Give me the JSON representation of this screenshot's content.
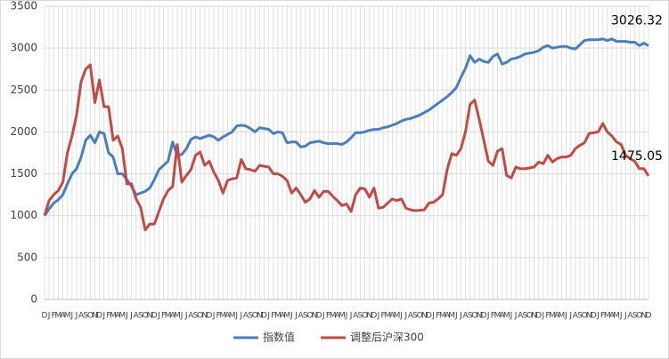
{
  "chart_data": {
    "type": "line",
    "categories": [
      "D",
      "J",
      "F",
      "M",
      "A",
      "M",
      "J",
      "J",
      "A",
      "S",
      "O",
      "N",
      "D",
      "J",
      "F",
      "M",
      "A",
      "M",
      "J",
      "J",
      "A",
      "S",
      "O",
      "N",
      "D",
      "J",
      "F",
      "M",
      "A",
      "M",
      "J",
      "J",
      "A",
      "S",
      "O",
      "N",
      "D",
      "J",
      "F",
      "M",
      "A",
      "M",
      "J",
      "J",
      "A",
      "S",
      "O",
      "N",
      "D",
      "J",
      "F",
      "M",
      "A",
      "M",
      "J",
      "J",
      "A",
      "S",
      "O",
      "N",
      "D",
      "J",
      "F",
      "M",
      "A",
      "M",
      "J",
      "J",
      "A",
      "S",
      "O",
      "N",
      "D",
      "J",
      "F",
      "M",
      "A",
      "M",
      "J",
      "J",
      "A",
      "S",
      "O",
      "N",
      "D",
      "J",
      "F",
      "M",
      "A",
      "M",
      "J",
      "J",
      "A",
      "S",
      "O",
      "N",
      "D",
      "J",
      "F",
      "M",
      "A",
      "M",
      "J",
      "J",
      "A",
      "S",
      "O",
      "N",
      "D",
      "J",
      "F",
      "M",
      "A",
      "M",
      "J",
      "J",
      "A",
      "S",
      "O",
      "N",
      "D",
      "J",
      "F",
      "M",
      "A",
      "M",
      "J",
      "J",
      "A",
      "S",
      "O",
      "N",
      "D"
    ],
    "series": [
      {
        "name": "指数值",
        "color": "#4a7ebb",
        "values": [
          1000,
          1080,
          1150,
          1190,
          1250,
          1380,
          1500,
          1560,
          1700,
          1900,
          1960,
          1870,
          2000,
          1980,
          1750,
          1700,
          1500,
          1500,
          1430,
          1350,
          1250,
          1270,
          1290,
          1330,
          1430,
          1550,
          1600,
          1650,
          1880,
          1720,
          1730,
          1800,
          1910,
          1940,
          1920,
          1940,
          1960,
          1940,
          1900,
          1940,
          1970,
          2000,
          2070,
          2080,
          2070,
          2040,
          2000,
          2050,
          2040,
          2030,
          1980,
          2000,
          1990,
          1870,
          1880,
          1880,
          1820,
          1830,
          1870,
          1880,
          1890,
          1870,
          1860,
          1860,
          1860,
          1850,
          1880,
          1930,
          1990,
          1990,
          2000,
          2020,
          2030,
          2030,
          2050,
          2060,
          2080,
          2100,
          2130,
          2150,
          2160,
          2180,
          2200,
          2230,
          2260,
          2300,
          2340,
          2380,
          2420,
          2470,
          2530,
          2650,
          2760,
          2910,
          2830,
          2870,
          2840,
          2830,
          2900,
          2930,
          2810,
          2830,
          2870,
          2880,
          2900,
          2930,
          2940,
          2950,
          2970,
          3010,
          3030,
          3000,
          3010,
          3020,
          3020,
          3000,
          2990,
          3040,
          3090,
          3100,
          3100,
          3100,
          3110,
          3090,
          3110,
          3080,
          3080,
          3080,
          3070,
          3070,
          3030,
          3060,
          3026.32
        ]
      },
      {
        "name": "调整后沪深300",
        "color": "#be4b48",
        "values": [
          1000,
          1180,
          1250,
          1300,
          1400,
          1750,
          1950,
          2200,
          2600,
          2750,
          2800,
          2350,
          2620,
          2300,
          2300,
          1900,
          1950,
          1800,
          1380,
          1380,
          1200,
          1100,
          830,
          900,
          900,
          1050,
          1200,
          1300,
          1350,
          1850,
          1400,
          1480,
          1550,
          1720,
          1760,
          1600,
          1650,
          1520,
          1420,
          1270,
          1420,
          1440,
          1450,
          1670,
          1560,
          1550,
          1530,
          1600,
          1590,
          1580,
          1500,
          1500,
          1470,
          1420,
          1270,
          1330,
          1250,
          1160,
          1200,
          1300,
          1220,
          1290,
          1290,
          1230,
          1180,
          1120,
          1140,
          1050,
          1250,
          1330,
          1320,
          1220,
          1330,
          1090,
          1100,
          1150,
          1200,
          1180,
          1200,
          1090,
          1070,
          1060,
          1065,
          1070,
          1150,
          1160,
          1200,
          1250,
          1550,
          1740,
          1720,
          1800,
          2000,
          2330,
          2380,
          2150,
          1900,
          1650,
          1600,
          1770,
          1800,
          1480,
          1450,
          1580,
          1560,
          1560,
          1570,
          1580,
          1640,
          1620,
          1720,
          1640,
          1680,
          1700,
          1700,
          1720,
          1800,
          1840,
          1870,
          1980,
          1990,
          2000,
          2100,
          2000,
          1950,
          1880,
          1850,
          1720,
          1680,
          1650,
          1560,
          1560,
          1475.05
        ]
      }
    ],
    "ylim": [
      0,
      3500
    ],
    "yticks": [
      0,
      500,
      1000,
      1500,
      2000,
      2500,
      3000,
      3500
    ],
    "grid": true,
    "legend": "bottom"
  }
}
